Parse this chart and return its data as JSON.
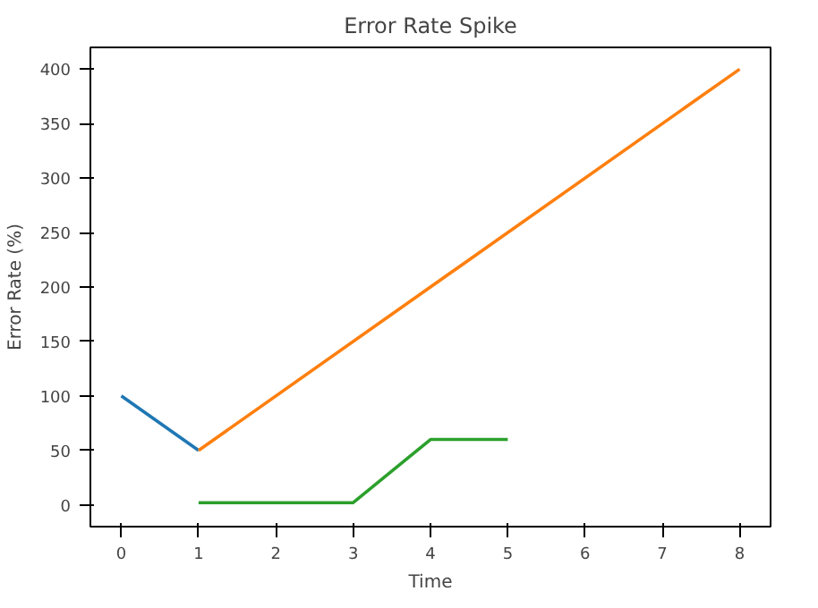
{
  "chart_data": {
    "type": "line",
    "title": "Error Rate Spike",
    "xlabel": "Time",
    "ylabel": "Error Rate (%)",
    "xlim": [
      -0.4,
      8.4
    ],
    "xticks": [
      0,
      1,
      2,
      3,
      4,
      5,
      6,
      7,
      8
    ],
    "ylim": [
      -20,
      420
    ],
    "yticks": [
      0,
      50,
      100,
      150,
      200,
      250,
      300,
      350,
      400
    ],
    "grid": false,
    "marker": "none",
    "line_style": "solid",
    "series": [
      {
        "color": "#1f77b4",
        "x": [
          0,
          1
        ],
        "values": [
          100,
          50
        ]
      },
      {
        "color": "#ff7f0e",
        "x": [
          1,
          8
        ],
        "values": [
          50,
          400
        ]
      },
      {
        "color": "#2ca02c",
        "x": [
          1,
          2,
          3,
          4,
          5
        ],
        "values": [
          2,
          2,
          2,
          60,
          60
        ]
      }
    ]
  }
}
